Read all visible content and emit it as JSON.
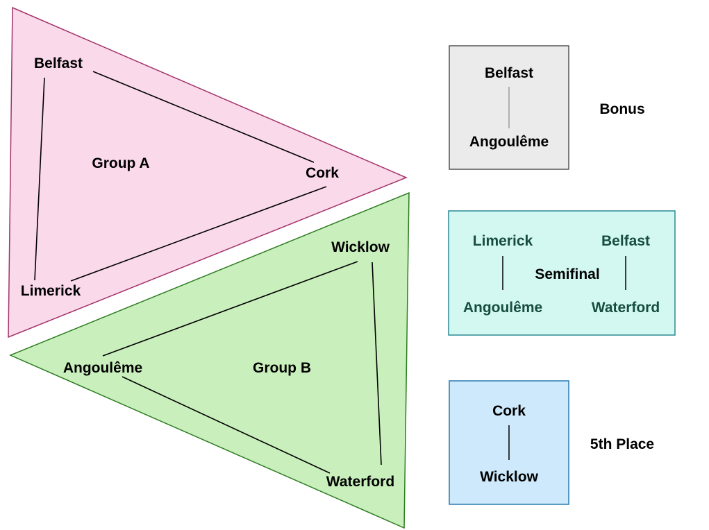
{
  "group_a": {
    "title": "Group A",
    "teams": {
      "belfast": "Belfast",
      "cork": "Cork",
      "limerick": "Limerick"
    }
  },
  "group_b": {
    "title": "Group B",
    "teams": {
      "wicklow": "Wicklow",
      "angouleme": "Angoulême",
      "waterford": "Waterford"
    }
  },
  "bonus": {
    "title": "Bonus",
    "team_top": "Belfast",
    "team_bottom": "Angoulême"
  },
  "semifinal": {
    "title": "Semifinal",
    "left_top": "Limerick",
    "left_bottom": "Angoulême",
    "right_top": "Belfast",
    "right_bottom": "Waterford"
  },
  "fifth_place": {
    "title": "5th Place",
    "team_top": "Cork",
    "team_bottom": "Wicklow"
  },
  "colors": {
    "group_a_fill": "#f9d9ea",
    "group_a_stroke": "#a3336b",
    "group_b_fill": "#c9efbc",
    "group_b_stroke": "#2e7d22",
    "bonus_fill": "#ebebeb",
    "bonus_stroke": "#555555",
    "semifinal_fill": "#d3f8f2",
    "semifinal_stroke": "#2a8a94",
    "semifinal_text": "#174d3f",
    "fifth_fill": "#cde9fb",
    "fifth_stroke": "#2a7ab0"
  }
}
